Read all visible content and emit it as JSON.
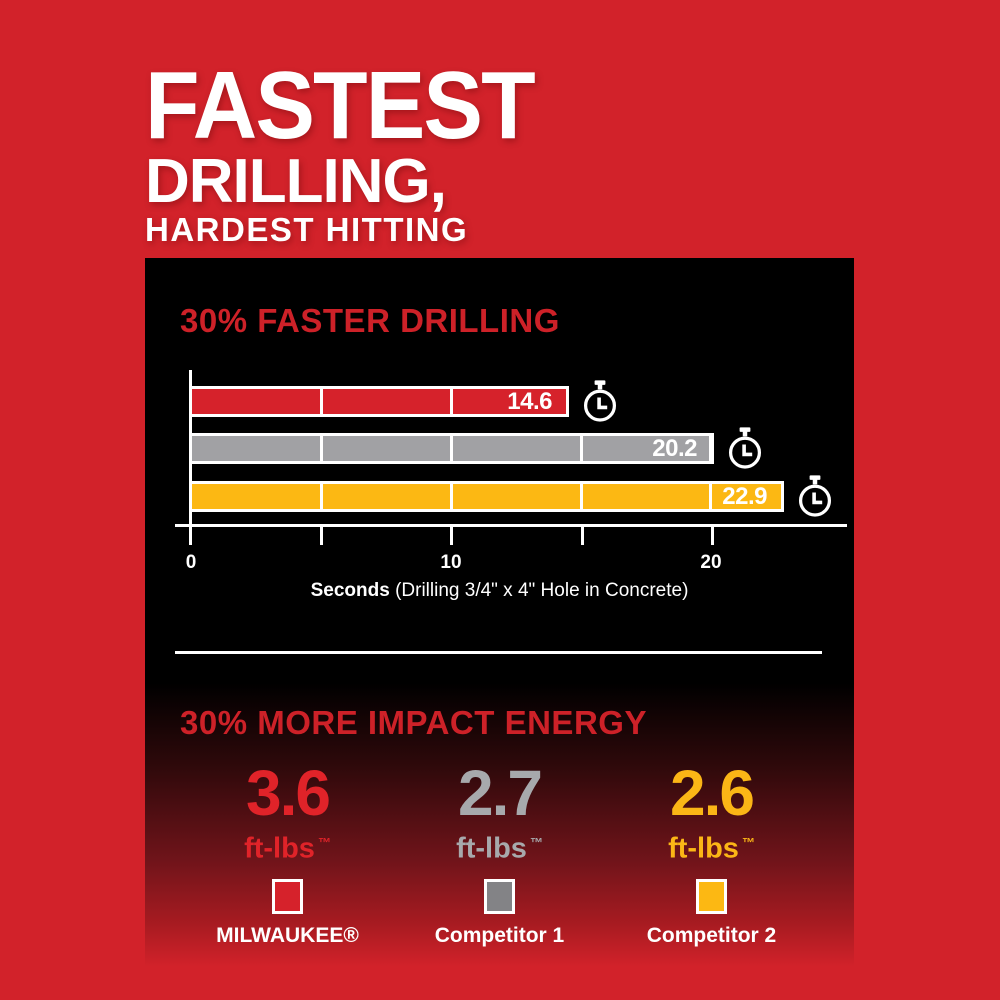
{
  "colors": {
    "background_red": "#d2222a",
    "panel_black": "#000000",
    "heading_red": "#cd2128",
    "milwaukee_red": "#d6222b",
    "competitor1_gray": "#a1a1a4",
    "competitor2_yellow": "#fcb813",
    "white": "#ffffff"
  },
  "title": {
    "line1": "FASTEST",
    "line2": "DRILLING,",
    "line3": "HARDEST HITTING"
  },
  "drilling": {
    "heading": "30% FASTER DRILLING",
    "bars": [
      {
        "name": "MILWAUKEE",
        "value": 14.6,
        "label": "14.6",
        "color": "#d6222b"
      },
      {
        "name": "Competitor 1",
        "value": 20.2,
        "label": "20.2",
        "color": "#a1a1a4"
      },
      {
        "name": "Competitor 2",
        "value": 22.9,
        "label": "22.9",
        "color": "#fcb813"
      }
    ],
    "tick_labels": [
      "0",
      "10",
      "20"
    ],
    "caption_bold": "Seconds",
    "caption_rest": " (Drilling 3/4\" x 4\" Hole in Concrete)"
  },
  "impact": {
    "heading": "30% MORE IMPACT ENERGY",
    "items": [
      {
        "value": "3.6",
        "unit": "ft-lbs",
        "tm": "™",
        "legend": "MILWAUKEE®",
        "color": "#e02329",
        "swatch": "#d6222b"
      },
      {
        "value": "2.7",
        "unit": "ft-lbs",
        "tm": "™",
        "legend": "Competitor 1",
        "color": "#a7a9ac",
        "swatch": "#838386"
      },
      {
        "value": "2.6",
        "unit": "ft-lbs",
        "tm": "™",
        "legend": "Competitor 2",
        "color": "#fbb616",
        "swatch": "#fcb813"
      }
    ]
  },
  "chart_data": [
    {
      "type": "bar",
      "orientation": "horizontal",
      "title": "30% FASTER DRILLING",
      "categories": [
        "MILWAUKEE",
        "Competitor 1",
        "Competitor 2"
      ],
      "values": [
        14.6,
        20.2,
        22.9
      ],
      "data_labels": [
        "14.6",
        "20.2",
        "22.9"
      ],
      "bar_colors": [
        "#d6222b",
        "#a1a1a4",
        "#fcb813"
      ],
      "xlabel": "Seconds (Drilling 3/4\" x 4\" Hole in Concrete)",
      "xlim": [
        0,
        24
      ],
      "xticks": [
        0,
        5,
        10,
        15,
        20
      ],
      "xtick_labels_shown": [
        "0",
        "10",
        "20"
      ],
      "grid": "white divider line at every 5-second interval inside bars",
      "legend_position": "bottom",
      "annotations": "stopwatch icon at the end of each bar"
    },
    {
      "type": "bar",
      "title": "30% MORE IMPACT ENERGY",
      "categories": [
        "MILWAUKEE",
        "Competitor 1",
        "Competitor 2"
      ],
      "values": [
        3.6,
        2.7,
        2.6
      ],
      "unit": "ft-lbs",
      "value_colors": [
        "#e02329",
        "#a7a9ac",
        "#fbb616"
      ],
      "legend_swatches": [
        "#d6222b",
        "#838386",
        "#fcb813"
      ]
    }
  ]
}
